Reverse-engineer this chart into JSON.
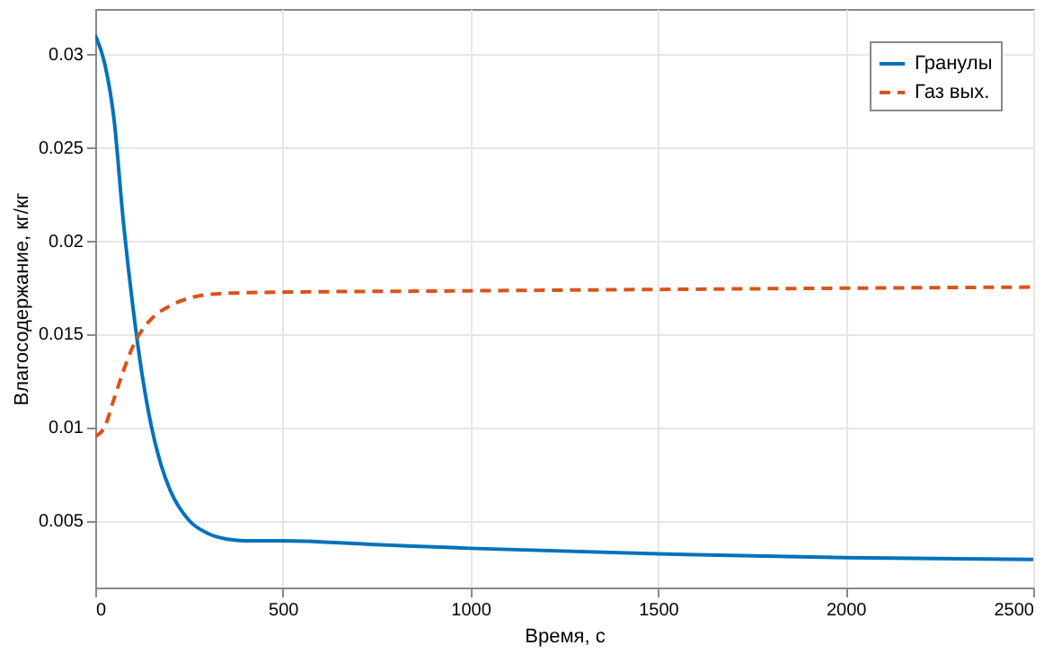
{
  "chart_data": {
    "type": "line",
    "xlabel": "Время, с",
    "ylabel": "Влагосодержание, кг/кг",
    "x": [
      0,
      25,
      50,
      75,
      100,
      125,
      150,
      175,
      200,
      250,
      300,
      350,
      400,
      500,
      750,
      1000,
      1500,
      2000,
      2500
    ],
    "series": [
      {
        "name": "Гранулы",
        "color": "#0072bd",
        "line_style": "solid",
        "values": [
          0.031,
          0.0295,
          0.0265,
          0.021,
          0.0165,
          0.0128,
          0.01,
          0.008,
          0.0066,
          0.005,
          0.0043,
          0.004,
          0.0039,
          0.0039,
          0.0037,
          0.0035,
          0.0032,
          0.003,
          0.0029
        ]
      },
      {
        "name": "Газ вых.",
        "color": "#d95319",
        "line_style": "dashed",
        "x": [
          0,
          25,
          50,
          75,
          100,
          125,
          150,
          200,
          250,
          300,
          400,
          1000,
          2500
        ],
        "values": [
          0.0095,
          0.01,
          0.0115,
          0.013,
          0.0143,
          0.0152,
          0.0158,
          0.0165,
          0.0169,
          0.0171,
          0.0172,
          0.0173,
          0.0175
        ]
      }
    ],
    "xlim": [
      0,
      2500
    ],
    "xticks": [
      0,
      500,
      1000,
      1500,
      2000,
      2500
    ],
    "ylim": [
      0.0014,
      0.0324
    ],
    "yticks": [
      0.005,
      0.01,
      0.015,
      0.02,
      0.025,
      0.03
    ],
    "grid": true,
    "legend": "top right"
  }
}
